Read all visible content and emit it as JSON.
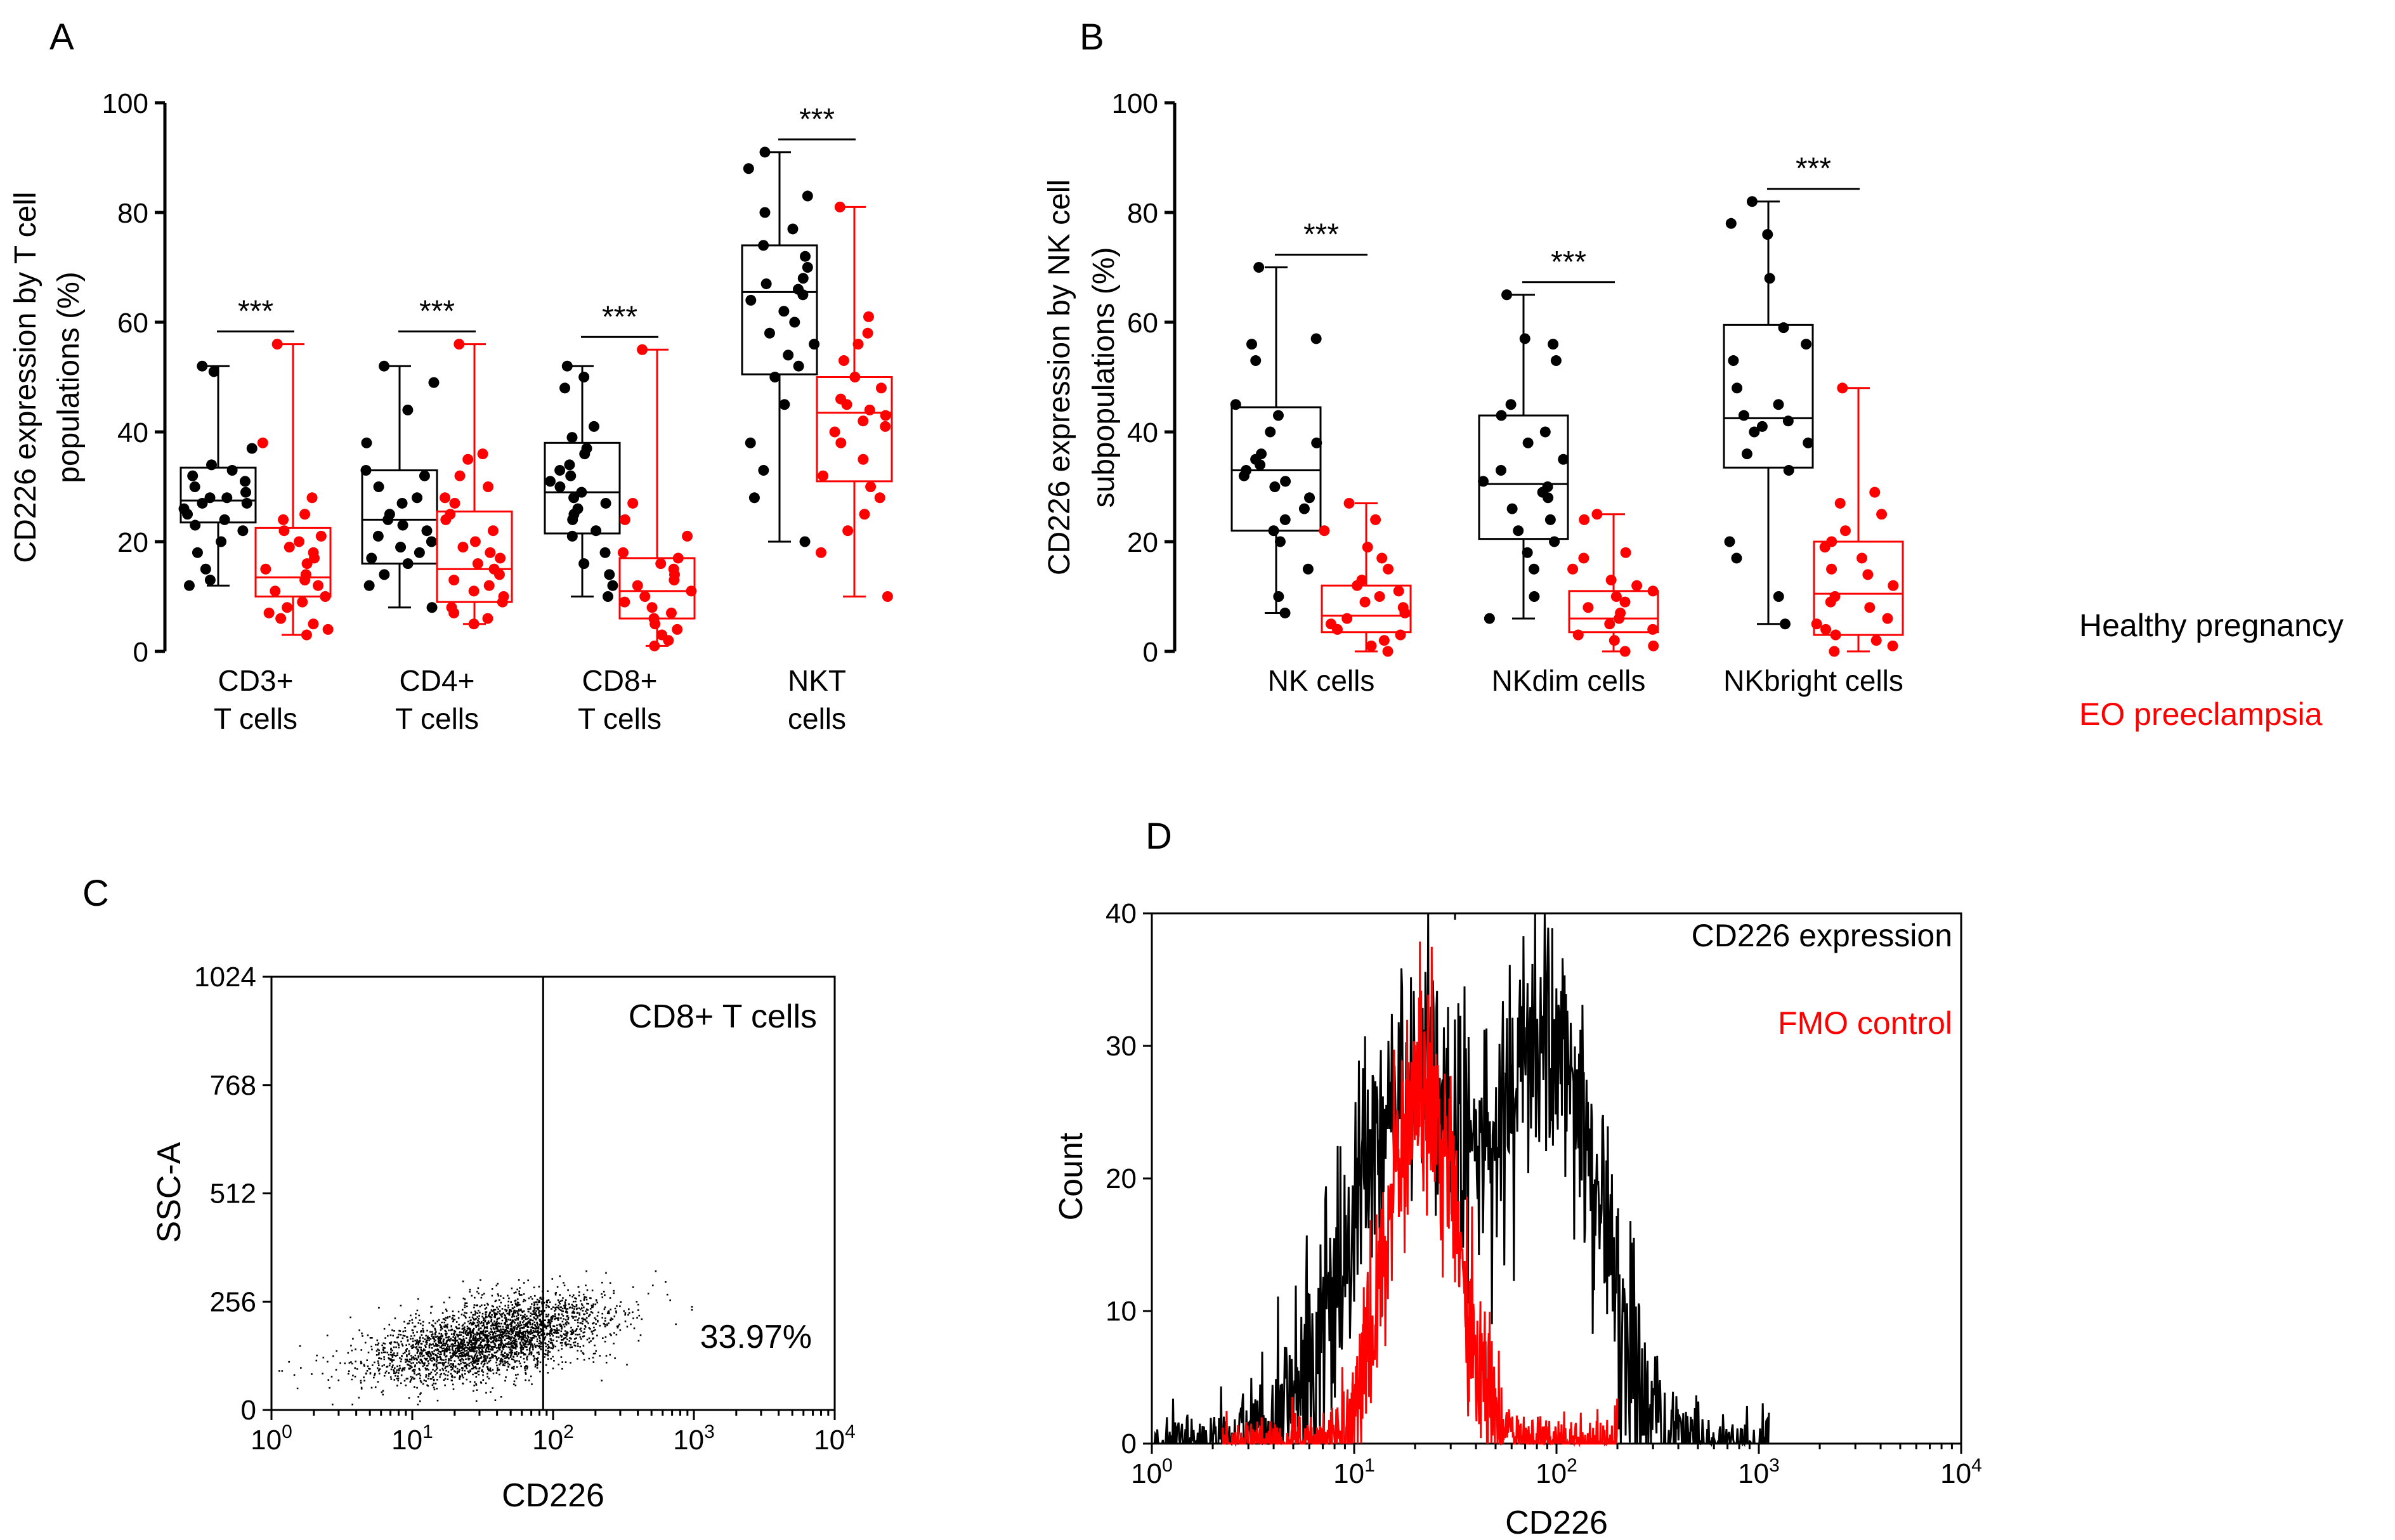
{
  "colors": {
    "healthy": "#000000",
    "preeclampsia": "#ff0000"
  },
  "legend": {
    "healthy": "Healthy pregnancy",
    "preeclampsia": "EO preeclampsia"
  },
  "chart_data": [
    {
      "panel": "A",
      "type": "box",
      "ylabel_line1": "CD226 expression by T cell",
      "ylabel_line2": "populations  (%)",
      "ylim": [
        0,
        100
      ],
      "yticks": [
        0,
        20,
        40,
        60,
        80,
        100
      ],
      "groups": [
        {
          "label_line1": "CD3+",
          "label_line2": "T cells",
          "significance": "***",
          "healthy": {
            "q1": 23.5,
            "median": 27.5,
            "q3": 33.5,
            "min": 12,
            "max": 52,
            "points": [
              52,
              51,
              37,
              34,
              33,
              32,
              31,
              30,
              29,
              28,
              28,
              27,
              27,
              26,
              25,
              24,
              23,
              22,
              20,
              18,
              15,
              13,
              12
            ]
          },
          "preeclampsia": {
            "q1": 10,
            "median": 13.5,
            "q3": 22.5,
            "min": 3,
            "max": 56,
            "points": [
              56,
              38,
              28,
              25,
              24,
              22,
              21,
              20,
              19,
              18,
              17,
              16,
              15,
              14,
              13,
              12,
              11,
              10,
              9,
              8,
              7,
              6,
              5,
              4,
              3
            ]
          }
        },
        {
          "label_line1": "CD4+",
          "label_line2": "T cells",
          "significance": "***",
          "healthy": {
            "q1": 16,
            "median": 24,
            "q3": 33,
            "min": 8,
            "max": 52,
            "points": [
              52,
              49,
              44,
              38,
              33,
              32,
              30,
              28,
              27,
              25,
              24,
              23,
              22,
              21,
              20,
              19,
              18,
              17,
              16,
              14,
              12,
              8
            ]
          },
          "preeclampsia": {
            "q1": 9,
            "median": 15,
            "q3": 25.5,
            "min": 5,
            "max": 56,
            "points": [
              56,
              36,
              35,
              32,
              30,
              28,
              27,
              25,
              24,
              22,
              20,
              19,
              18,
              17,
              16,
              15,
              14,
              13,
              12,
              11,
              10,
              9,
              8,
              7,
              6,
              5
            ]
          }
        },
        {
          "label_line1": "CD8+",
          "label_line2": "T cells",
          "significance": "***",
          "healthy": {
            "q1": 21.5,
            "median": 29,
            "q3": 38,
            "min": 10,
            "max": 52,
            "points": [
              52,
              50,
              48,
              41,
              39,
              37,
              36,
              34,
              33,
              32,
              31,
              30,
              29,
              28,
              27,
              26,
              25,
              24,
              22,
              21,
              18,
              16,
              14,
              12,
              10
            ]
          },
          "preeclampsia": {
            "q1": 6,
            "median": 11,
            "q3": 17,
            "min": 1,
            "max": 55,
            "points": [
              55,
              27,
              24,
              21,
              18,
              17,
              16,
              15,
              14,
              13,
              12,
              11,
              10,
              9,
              8,
              7,
              6,
              5,
              4,
              3,
              2,
              1
            ]
          }
        },
        {
          "label_line1": "NKT",
          "label_line2": "cells",
          "significance": "***",
          "healthy": {
            "q1": 50.5,
            "median": 65.5,
            "q3": 74,
            "min": 20,
            "max": 91,
            "points": [
              91,
              88,
              83,
              80,
              77,
              74,
              72,
              70,
              68,
              67,
              66,
              65,
              64,
              62,
              60,
              58,
              56,
              54,
              52,
              50,
              45,
              38,
              33,
              28,
              20
            ]
          },
          "preeclampsia": {
            "q1": 31,
            "median": 43.5,
            "q3": 50,
            "min": 10,
            "max": 81,
            "points": [
              81,
              61,
              58,
              56,
              53,
              50,
              48,
              46,
              45,
              44,
              43,
              42,
              41,
              40,
              38,
              35,
              32,
              30,
              28,
              25,
              22,
              18,
              10
            ]
          }
        }
      ]
    },
    {
      "panel": "B",
      "type": "box",
      "ylabel_line1": "CD226 expression by NK cell",
      "ylabel_line2": "subpopulations  (%)",
      "ylim": [
        0,
        100
      ],
      "yticks": [
        0,
        20,
        40,
        60,
        80,
        100
      ],
      "groups": [
        {
          "label_line1": "NK cells",
          "label_line2": "",
          "significance": "***",
          "healthy": {
            "q1": 22,
            "median": 33,
            "q3": 44.5,
            "min": 7,
            "max": 70,
            "points": [
              70,
              57,
              56,
              53,
              45,
              43,
              40,
              38,
              36,
              35,
              34,
              33,
              32,
              31,
              30,
              28,
              26,
              24,
              22,
              20,
              15,
              10,
              7
            ]
          },
          "preeclampsia": {
            "q1": 3.5,
            "median": 6.5,
            "q3": 12,
            "min": 0,
            "max": 27,
            "points": [
              27,
              24,
              22,
              19,
              17,
              15,
              13,
              12,
              11,
              10,
              9,
              8,
              7,
              6,
              5,
              4,
              3,
              2,
              1,
              0
            ]
          }
        },
        {
          "label_line1": "NKdim  cells",
          "label_line2": "",
          "significance": "***",
          "healthy": {
            "q1": 20.5,
            "median": 30.5,
            "q3": 43,
            "min": 6,
            "max": 65,
            "points": [
              65,
              57,
              56,
              53,
              45,
              43,
              40,
              38,
              35,
              33,
              31,
              30,
              29,
              28,
              26,
              24,
              22,
              20,
              18,
              15,
              10,
              6
            ]
          },
          "preeclampsia": {
            "q1": 3.5,
            "median": 6,
            "q3": 11,
            "min": 0,
            "max": 25,
            "points": [
              25,
              24,
              18,
              17,
              15,
              13,
              12,
              11,
              10,
              9,
              8,
              7,
              6,
              5,
              4,
              3,
              2,
              1,
              0
            ]
          }
        },
        {
          "label_line1": "NKbright cells",
          "label_line2": "",
          "significance": "***",
          "healthy": {
            "q1": 33.5,
            "median": 42.5,
            "q3": 59.5,
            "min": 5,
            "max": 82,
            "points": [
              82,
              78,
              76,
              68,
              59,
              56,
              53,
              48,
              45,
              43,
              42,
              41,
              40,
              38,
              36,
              33,
              20,
              17,
              10,
              5
            ]
          },
          "preeclampsia": {
            "q1": 3,
            "median": 10.5,
            "q3": 20,
            "min": 0,
            "max": 48,
            "points": [
              48,
              29,
              27,
              25,
              22,
              20,
              19,
              17,
              15,
              14,
              12,
              10,
              9,
              8,
              6,
              5,
              4,
              3,
              2,
              1,
              0
            ]
          }
        }
      ]
    },
    {
      "panel": "C",
      "type": "scatter",
      "title": "CD8+ T cells",
      "xlabel": "CD226",
      "ylabel": "SSC-A",
      "xscale": "log",
      "xlim": [
        1,
        10000
      ],
      "ylim": [
        0,
        1024
      ],
      "yticks": [
        0,
        256,
        512,
        768,
        1024
      ],
      "xticks": [
        {
          "base": "10",
          "exp": "0"
        },
        {
          "base": "10",
          "exp": "1"
        },
        {
          "base": "10",
          "exp": "2"
        },
        {
          "base": "10",
          "exp": "3"
        },
        {
          "base": "10",
          "exp": "4"
        }
      ],
      "gate_x": 85,
      "percent_label": "33.97%",
      "population": {
        "center_log_x": 1.55,
        "spread_log_x": 0.42,
        "center_y": 170,
        "spread_y": 45,
        "count": 3000
      }
    },
    {
      "panel": "D",
      "type": "histogram",
      "xlabel": "CD226",
      "ylabel": "Count",
      "xscale": "log",
      "xlim": [
        1,
        10000
      ],
      "ylim": [
        0,
        40
      ],
      "yticks": [
        0,
        10,
        20,
        30,
        40
      ],
      "xticks": [
        {
          "base": "10",
          "exp": "0"
        },
        {
          "base": "10",
          "exp": "1"
        },
        {
          "base": "10",
          "exp": "2"
        },
        {
          "base": "10",
          "exp": "3"
        },
        {
          "base": "10",
          "exp": "4"
        }
      ],
      "series": [
        {
          "name": "CD226 expression",
          "color": "#000000",
          "peaks": [
            {
              "log_x": 1.32,
              "height": 27,
              "sigma": 0.32
            },
            {
              "log_x": 2.0,
              "height": 27,
              "sigma": 0.22
            }
          ],
          "log_range": [
            0.0,
            3.05
          ],
          "noise": 5,
          "max": 40
        },
        {
          "name": "FMO control",
          "color": "#ff0000",
          "peaks": [
            {
              "log_x": 1.34,
              "height": 27,
              "sigma": 0.16
            }
          ],
          "log_range": [
            0.35,
            2.3
          ],
          "noise": 4,
          "max": 38
        }
      ]
    }
  ]
}
